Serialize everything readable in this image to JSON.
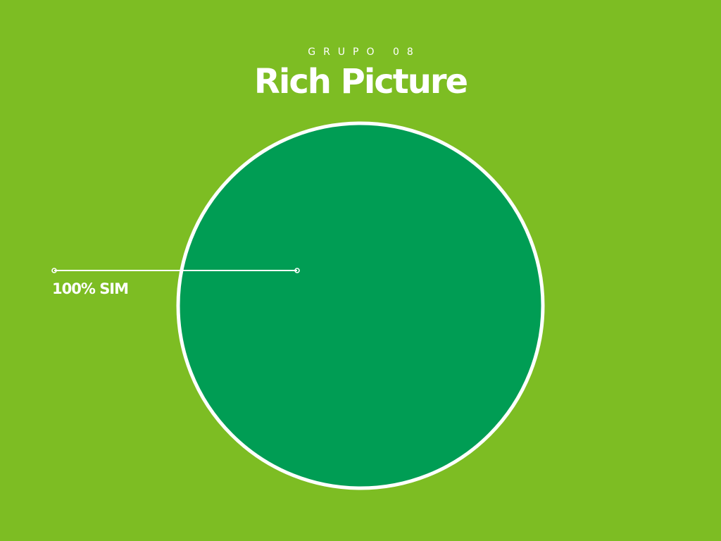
{
  "header": {
    "subtitle": "GRUPO 08",
    "title": "Rich Picture"
  },
  "colors": {
    "background": "#7dbd23",
    "slice": "#009d54",
    "outline": "#ffffff"
  },
  "chart_data": {
    "type": "pie",
    "title": "Rich Picture",
    "subtitle": "GRUPO 08",
    "slices": [
      {
        "label": "100% SIM",
        "value": 100
      }
    ]
  }
}
